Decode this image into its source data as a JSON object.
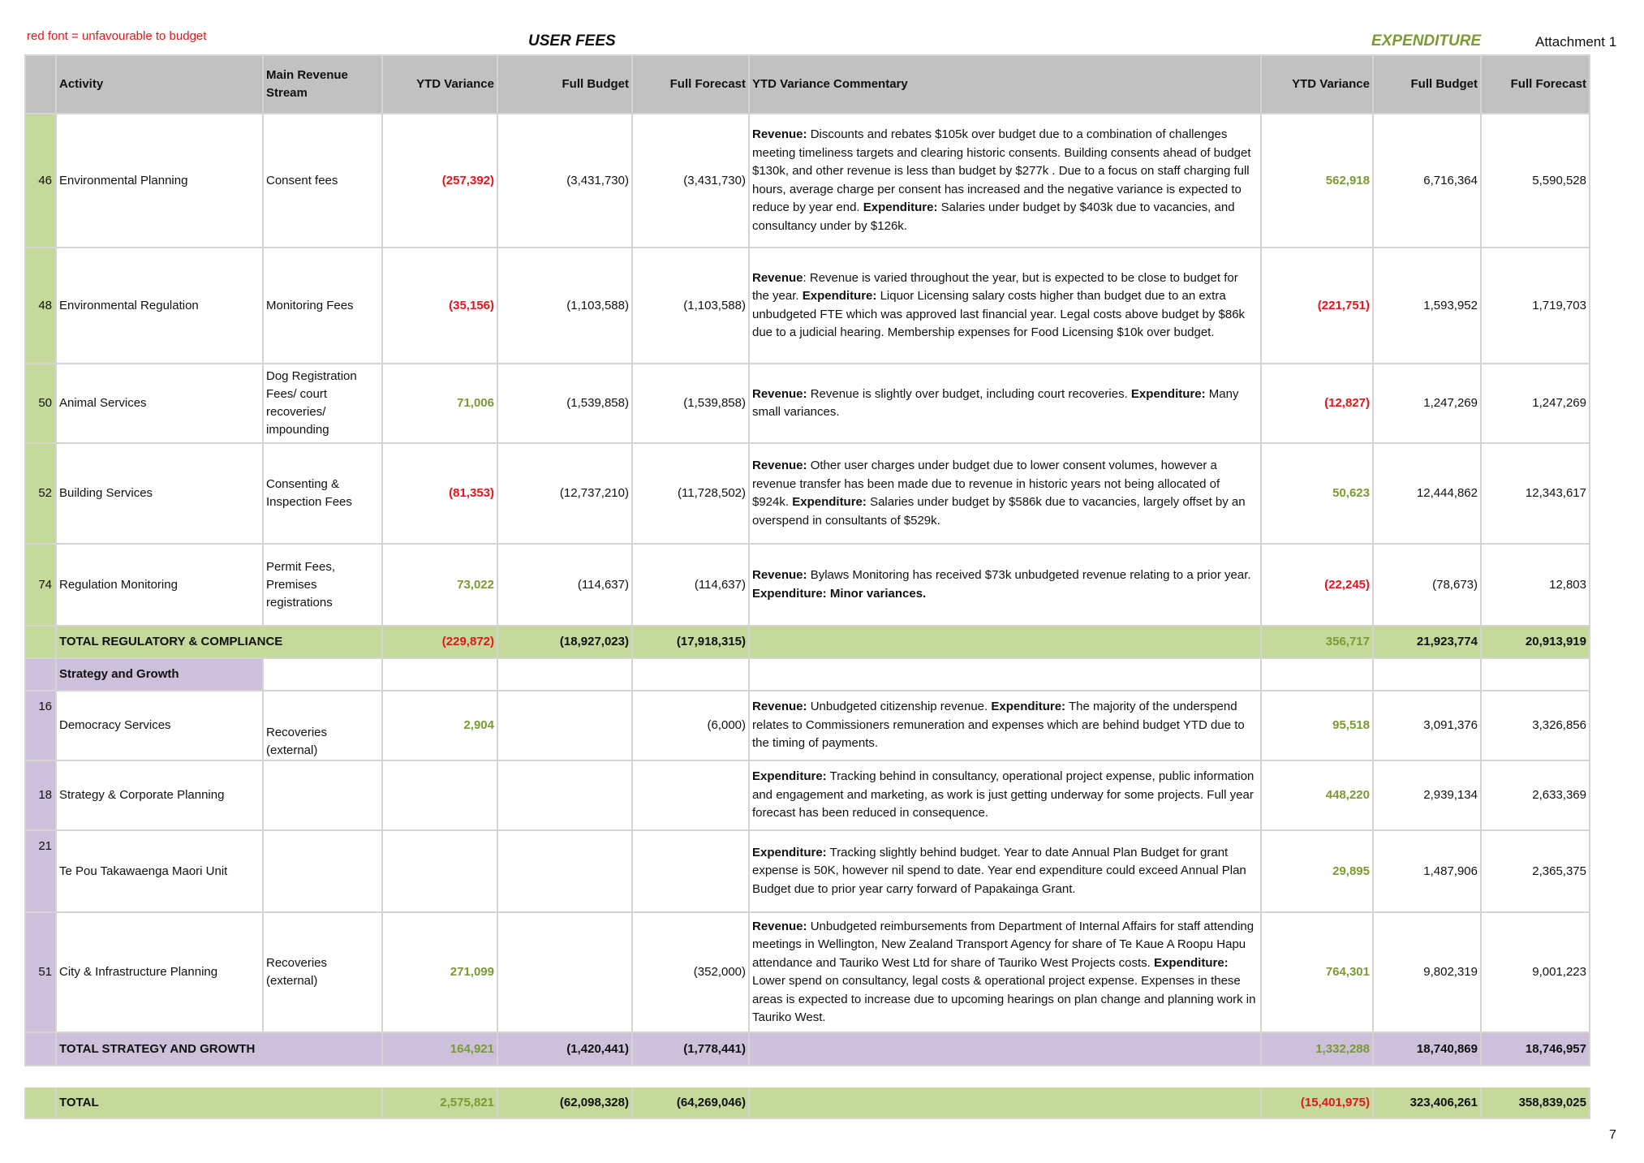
{
  "legend": "red font = unfavourable to budget",
  "user_fees_title": "USER FEES",
  "expenditure_title": "EXPENDITURE",
  "attachment": "Attachment 1",
  "page_number": "7",
  "headers": {
    "activity": "Activity",
    "stream": "Main Revenue Stream",
    "ytd": "YTD Variance",
    "budget": "Full Budget",
    "forecast": "Full Forecast",
    "commentary": "YTD Variance Commentary",
    "exp_ytd": "YTD Variance",
    "exp_budget": "Full Budget",
    "exp_forecast": "Full Forecast"
  },
  "rows": [
    {
      "id": "46",
      "activity": "Environmental Planning",
      "stream": "Consent fees",
      "ytd": "(257,392)",
      "budget": "(3,431,730)",
      "forecast": "(3,431,730)",
      "c1": "Revenue:",
      "c2": "  Discounts and rebates $105k over budget due to a combination of challenges meeting timeliness targets and clearing historic consents.  Building consents ahead of budget $130k, and other revenue is less than budget by $277k .  Due to a focus on staff charging full hours, average charge per consent has increased and the negative variance is expected to reduce by year end.  ",
      "c3": "Expenditure:",
      "c4": "  Salaries under budget by $403k due to vacancies, and consultancy under by $126k.",
      "exp_ytd": "562,918",
      "exp_budget": "6,716,364",
      "exp_forecast": "5,590,528"
    },
    {
      "id": "48",
      "activity": "Environmental Regulation",
      "stream": "Monitoring Fees",
      "ytd": "(35,156)",
      "budget": "(1,103,588)",
      "forecast": "(1,103,588)",
      "c1": "Revenue",
      "c2": ": Revenue is varied throughout the year, but is expected to be close to budget for the year.   ",
      "c3": "Expenditure:",
      "c4": "  Liquor Licensing salary costs higher than budget due to an extra unbudgeted FTE which was approved last financial year.  Legal costs above budget by $86k due to a judicial hearing.  Membership expenses for Food Licensing $10k over budget.",
      "exp_ytd": "(221,751)",
      "exp_budget": "1,593,952",
      "exp_forecast": "1,719,703"
    },
    {
      "id": "50",
      "activity": "Animal Services",
      "stream": "Dog Registration Fees/ court recoveries/ impounding",
      "ytd": "71,006",
      "budget": "(1,539,858)",
      "forecast": "(1,539,858)",
      "c1": "Revenue:",
      "c2": "  Revenue is slightly over budget, including court recoveries.  ",
      "c3": "Expenditure:",
      "c4": " Many small variances.",
      "exp_ytd": "(12,827)",
      "exp_budget": "1,247,269",
      "exp_forecast": "1,247,269"
    },
    {
      "id": "52",
      "activity": "Building Services",
      "stream": "Consenting & Inspection Fees",
      "ytd": "(81,353)",
      "budget": "(12,737,210)",
      "forecast": "(11,728,502)",
      "c1": "Revenue:",
      "c2": "  Other user charges under budget due to lower consent volumes, however a revenue transfer has been made due to revenue in historic years not being allocated of $924k.  ",
      "c3": "Expenditure:",
      "c4": "  Salaries under budget by $586k due to vacancies, largely offset by an overspend in consultants of $529k.",
      "exp_ytd": "50,623",
      "exp_budget": "12,444,862",
      "exp_forecast": "12,343,617"
    },
    {
      "id": "74",
      "activity": "Regulation Monitoring",
      "stream": "Permit Fees, Premises registrations",
      "ytd": "73,022",
      "budget": "(114,637)",
      "forecast": "(114,637)",
      "c1": "Revenue:",
      "c2": "  Bylaws Monitoring has received $73k unbudgeted revenue relating to a prior year.  ",
      "c3": "Expenditure: Minor variances.",
      "c4": "",
      "exp_ytd": "(22,245)",
      "exp_budget": "(78,673)",
      "exp_forecast": "12,803"
    }
  ],
  "total_reg": {
    "label": "TOTAL REGULATORY & COMPLIANCE",
    "ytd": "(229,872)",
    "budget": "(18,927,023)",
    "forecast": "(17,918,315)",
    "exp_ytd": "356,717",
    "exp_budget": "21,923,774",
    "exp_forecast": "20,913,919"
  },
  "strategy_heading": "Strategy and Growth",
  "strategy_rows": [
    {
      "id": "16",
      "activity": "Democracy Services",
      "stream": "Recoveries (external)",
      "ytd": "2,904",
      "budget": "",
      "forecast": "(6,000)",
      "c1": "Revenue:",
      "c2": " Unbudgeted citizenship revenue.  ",
      "c3": "Expenditure:",
      "c4": " The majority of the underspend relates to Commissioners remuneration and expenses  which are behind budget YTD due to the timing of payments.",
      "exp_ytd": "95,518",
      "exp_budget": "3,091,376",
      "exp_forecast": "3,326,856"
    },
    {
      "id": "18",
      "activity": "Strategy & Corporate Planning",
      "stream": "",
      "ytd": "",
      "budget": "",
      "forecast": "",
      "c1": "",
      "c2": "",
      "c3": "Expenditure:",
      "c4": " Tracking behind in consultancy, operational project expense, public information and engagement and marketing, as work is just getting underway for some projects. Full year forecast has been reduced in consequence.",
      "exp_ytd": "448,220",
      "exp_budget": "2,939,134",
      "exp_forecast": "2,633,369"
    },
    {
      "id": "21",
      "activity": "Te Pou Takawaenga Maori Unit",
      "stream": "",
      "ytd": "",
      "budget": "",
      "forecast": "",
      "c1": "",
      "c2": "",
      "c3": "Expenditure:",
      "c4": "  Tracking slightly behind budget. Year to date Annual Plan Budget for grant expense is 50K, however nil spend to date.  Year end expenditure could exceed Annual Plan Budget due to prior year carry forward of Papakainga Grant.",
      "exp_ytd": "29,895",
      "exp_budget": "1,487,906",
      "exp_forecast": "2,365,375"
    },
    {
      "id": "51",
      "activity": "City & Infrastructure Planning",
      "stream": "Recoveries (external)",
      "ytd": "271,099",
      "budget": "",
      "forecast": "(352,000)",
      "c1": "Revenue:",
      "c2": " Unbudgeted reimbursements from Department of Internal Affairs for staff attending meetings in Wellington, New Zealand Transport Agency for share of Te Kaue A Roopu Hapu attendance and Tauriko West Ltd for share of Tauriko West Projects costs. ",
      "c3": "Expenditure:",
      "c4": " Lower spend on consultancy, legal costs & operational project expense. Expenses in these areas is expected to increase due to upcoming hearings on plan change and planning work in Tauriko West.",
      "exp_ytd": "764,301",
      "exp_budget": "9,802,319",
      "exp_forecast": "9,001,223"
    }
  ],
  "total_strat": {
    "label": "TOTAL STRATEGY AND GROWTH",
    "ytd": "164,921",
    "budget": "(1,420,441)",
    "forecast": "(1,778,441)",
    "exp_ytd": "1,332,288",
    "exp_budget": "18,740,869",
    "exp_forecast": "18,746,957"
  },
  "total": {
    "label": "TOTAL",
    "ytd": "2,575,821",
    "budget": "(62,098,328)",
    "forecast": "(64,269,046)",
    "exp_ytd": "(15,401,975)",
    "exp_budget": "323,406,261",
    "exp_forecast": "358,839,025"
  },
  "colors": {
    "unfavourable": "#e8141c",
    "favourable": "#7a9a32",
    "regulatory_band": "#c4d99a",
    "strategy_band": "#ccc0da",
    "header": "#c1c1c1"
  }
}
